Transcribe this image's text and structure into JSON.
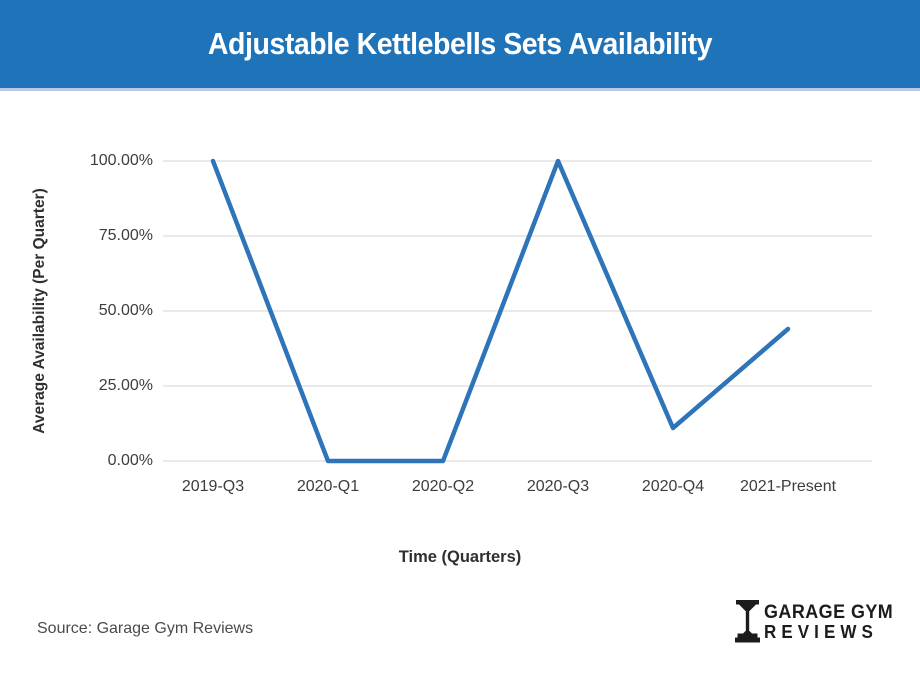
{
  "header": {
    "title": "Adjustable Kettlebells Sets Availability"
  },
  "chart_data": {
    "type": "line",
    "title": "Adjustable Kettlebells Sets Availability",
    "categories": [
      "2019-Q3",
      "2020-Q1",
      "2020-Q2",
      "2020-Q3",
      "2020-Q4",
      "2021-Present"
    ],
    "series": [
      {
        "name": "Average Availability",
        "values": [
          100,
          0,
          0,
          100,
          11,
          44
        ]
      }
    ],
    "xlabel": "Time (Quarters)",
    "ylabel": "Average Availability (Per Quarter)",
    "ylim": [
      0,
      100
    ],
    "yticks": [
      0,
      25,
      50,
      75,
      100
    ],
    "ytick_labels": [
      "0.00%",
      "25.00%",
      "50.00%",
      "75.00%",
      "100.00%"
    ],
    "grid": "horizontal-only",
    "legend": "none"
  },
  "footer": {
    "source": "Source: Garage Gym Reviews",
    "logo": {
      "icon": "dumbbell-icon",
      "line1": "GARAGE GYM",
      "line2": "REVIEWS"
    }
  },
  "colors": {
    "header_bg": "#1e73b9",
    "header_border": "#b9c9e4",
    "line": "#2e74b8",
    "grid": "#e3e3e3",
    "tick_text": "#3d3d3d",
    "axis_title_text": "#2f2f2f",
    "source_text": "#4b4b4b",
    "logo": "#1c1c1c",
    "title_text": "#ffffff"
  }
}
